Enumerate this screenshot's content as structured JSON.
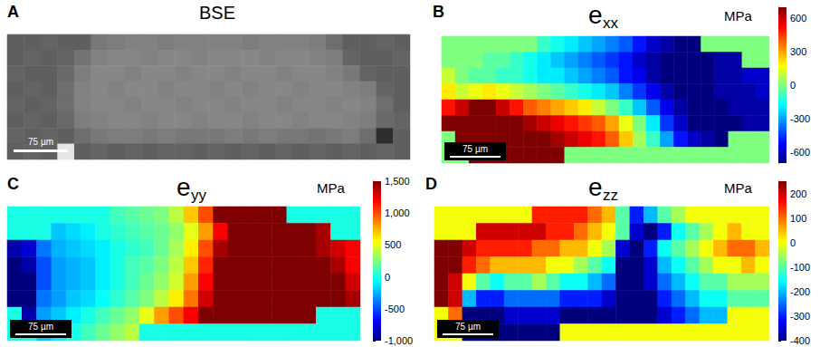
{
  "chart_data": [
    {
      "type": "image",
      "panel": "A",
      "title": "BSE",
      "scale_bar": "75 µm",
      "tick_labels": false,
      "gray_range": [
        0,
        255
      ],
      "cells": [
        [
          95,
          95,
          100,
          95,
          95,
          120,
          125,
          130,
          130,
          125,
          130,
          130,
          130,
          130,
          125,
          130,
          130,
          130,
          125,
          110,
          95,
          95,
          100,
          95
        ],
        [
          95,
          100,
          95,
          100,
          115,
          130,
          135,
          135,
          130,
          135,
          135,
          130,
          135,
          135,
          135,
          130,
          135,
          135,
          130,
          125,
          100,
          95,
          95,
          100
        ],
        [
          100,
          95,
          95,
          105,
          125,
          135,
          135,
          130,
          135,
          135,
          130,
          135,
          135,
          130,
          135,
          135,
          130,
          135,
          135,
          130,
          120,
          100,
          95,
          95
        ],
        [
          95,
          100,
          95,
          110,
          130,
          135,
          130,
          135,
          135,
          130,
          135,
          135,
          130,
          135,
          130,
          135,
          135,
          130,
          135,
          135,
          130,
          125,
          100,
          95
        ],
        [
          100,
          95,
          100,
          110,
          130,
          135,
          135,
          130,
          135,
          135,
          130,
          135,
          135,
          130,
          135,
          135,
          130,
          135,
          135,
          130,
          135,
          130,
          110,
          95
        ],
        [
          95,
          100,
          95,
          105,
          125,
          130,
          135,
          135,
          130,
          135,
          135,
          130,
          135,
          135,
          130,
          135,
          135,
          130,
          135,
          135,
          130,
          125,
          105,
          100
        ],
        [
          100,
          95,
          100,
          95,
          110,
          120,
          125,
          125,
          120,
          125,
          120,
          120,
          120,
          125,
          120,
          125,
          120,
          120,
          115,
          120,
          125,
          110,
          45,
          95
        ],
        [
          95,
          100,
          95,
          230,
          95,
          100,
          95,
          100,
          95,
          100,
          100,
          95,
          100,
          95,
          100,
          95,
          100,
          95,
          100,
          95,
          100,
          95,
          100,
          95
        ]
      ]
    },
    {
      "type": "heatmap",
      "panel": "B",
      "title": {
        "text": "e",
        "subscript": "xx"
      },
      "unit": "MPa",
      "scale_bar": "75 µm",
      "tick_labels": false,
      "colorbar_range": [
        -700,
        700
      ],
      "colorbar_ticks": [
        -600,
        -300,
        0,
        300,
        600
      ],
      "cells": [
        [
          0,
          0,
          0,
          0,
          0,
          0,
          0,
          -100,
          -150,
          -200,
          -250,
          -300,
          -350,
          -400,
          -500,
          -600,
          -650,
          -700,
          -700,
          0,
          0,
          0,
          0,
          0
        ],
        [
          0,
          0,
          0,
          -50,
          -50,
          -100,
          -150,
          -200,
          -250,
          -300,
          -350,
          -400,
          -450,
          -500,
          -600,
          -650,
          -700,
          -700,
          -700,
          -700,
          -650,
          -650,
          0,
          0
        ],
        [
          100,
          0,
          -50,
          -50,
          -100,
          -100,
          -150,
          -200,
          -200,
          -250,
          -300,
          -350,
          -400,
          -500,
          -550,
          -650,
          -700,
          -700,
          -700,
          -700,
          -650,
          -650,
          -600,
          -600
        ],
        [
          200,
          100,
          150,
          200,
          150,
          100,
          50,
          0,
          -50,
          -100,
          -150,
          -200,
          -250,
          -350,
          -450,
          -550,
          -650,
          -700,
          -700,
          -700,
          -650,
          -650,
          -650,
          -600
        ],
        [
          500,
          600,
          700,
          700,
          600,
          500,
          400,
          350,
          300,
          250,
          200,
          100,
          0,
          -100,
          -250,
          -400,
          -550,
          -650,
          -700,
          -700,
          -700,
          -650,
          -650,
          -650
        ],
        [
          700,
          700,
          700,
          700,
          700,
          700,
          650,
          600,
          550,
          500,
          450,
          400,
          300,
          150,
          0,
          -200,
          -450,
          -600,
          -700,
          -700,
          -700,
          -700,
          -650,
          -650
        ],
        [
          0,
          700,
          700,
          700,
          700,
          700,
          700,
          700,
          650,
          600,
          550,
          500,
          400,
          250,
          50,
          -100,
          -300,
          -500,
          -600,
          -650,
          -700,
          0,
          0,
          0
        ],
        [
          0,
          0,
          700,
          700,
          700,
          700,
          700,
          700,
          700,
          0,
          0,
          0,
          0,
          0,
          0,
          0,
          0,
          0,
          0,
          0,
          0,
          0,
          0,
          0
        ]
      ]
    },
    {
      "type": "heatmap",
      "panel": "C",
      "title": {
        "text": "e",
        "subscript": "yy"
      },
      "unit": "MPa",
      "scale_bar": "75 µm",
      "tick_labels": false,
      "colorbar_range": [
        -1000,
        1500
      ],
      "colorbar_ticks": [
        -1000,
        -500,
        0,
        500,
        1000,
        1500
      ],
      "cells": [
        [
          0,
          0,
          0,
          0,
          0,
          0,
          0,
          100,
          150,
          200,
          250,
          400,
          700,
          1000,
          1500,
          1500,
          1500,
          1500,
          1500,
          0,
          0,
          0,
          0,
          0
        ],
        [
          0,
          0,
          0,
          -200,
          -150,
          -100,
          0,
          50,
          100,
          150,
          200,
          300,
          500,
          800,
          1200,
          1500,
          1500,
          1500,
          1500,
          1500,
          1500,
          1400,
          0,
          0
        ],
        [
          -900,
          -800,
          -400,
          -250,
          -200,
          -150,
          -100,
          0,
          50,
          100,
          200,
          350,
          600,
          1000,
          1400,
          1500,
          1500,
          1500,
          1500,
          1500,
          1500,
          1400,
          1300,
          1200
        ],
        [
          -1000,
          -900,
          -500,
          -300,
          -250,
          -200,
          -100,
          0,
          100,
          150,
          250,
          400,
          700,
          1100,
          1500,
          1500,
          1500,
          1500,
          1500,
          1500,
          1500,
          1500,
          1400,
          1200
        ],
        [
          -1000,
          -1000,
          -500,
          -300,
          -250,
          -200,
          -100,
          0,
          100,
          200,
          300,
          450,
          800,
          1200,
          1500,
          1500,
          1500,
          1500,
          1500,
          1500,
          1500,
          1500,
          1500,
          1300
        ],
        [
          -1000,
          -1000,
          -400,
          -300,
          -200,
          -150,
          -50,
          50,
          150,
          250,
          400,
          600,
          900,
          1300,
          1500,
          1500,
          1500,
          1500,
          1500,
          1500,
          1500,
          1500,
          1500,
          1400
        ],
        [
          0,
          -900,
          -300,
          -200,
          -100,
          0,
          100,
          200,
          300,
          500,
          800,
          1000,
          1200,
          1500,
          1500,
          1500,
          1500,
          1500,
          1500,
          1500,
          1500,
          0,
          0,
          0
        ],
        [
          0,
          0,
          -200,
          -100,
          0,
          100,
          200,
          300,
          400,
          0,
          0,
          0,
          0,
          0,
          0,
          0,
          0,
          0,
          0,
          0,
          0,
          0,
          0,
          0
        ]
      ]
    },
    {
      "type": "heatmap",
      "panel": "D",
      "title": {
        "text": "e",
        "subscript": "zz"
      },
      "unit": "MPa",
      "scale_bar": "75 µm",
      "tick_labels": false,
      "colorbar_range": [
        -400,
        250
      ],
      "colorbar_ticks": [
        -400,
        -300,
        -200,
        -100,
        0,
        100,
        200
      ],
      "cells": [
        [
          0,
          0,
          0,
          0,
          0,
          0,
          0,
          150,
          150,
          150,
          150,
          100,
          50,
          -100,
          -300,
          -200,
          -100,
          -50,
          0,
          0,
          0,
          0,
          0,
          0
        ],
        [
          0,
          0,
          0,
          200,
          200,
          200,
          200,
          200,
          150,
          150,
          100,
          50,
          0,
          -100,
          -350,
          -400,
          -300,
          -150,
          -100,
          -50,
          0,
          50,
          0,
          0
        ],
        [
          250,
          250,
          200,
          150,
          150,
          150,
          150,
          100,
          100,
          50,
          50,
          0,
          -50,
          -350,
          -400,
          -300,
          -150,
          -100,
          -50,
          0,
          50,
          100,
          100,
          50
        ],
        [
          250,
          250,
          150,
          100,
          50,
          50,
          50,
          50,
          0,
          0,
          -50,
          -100,
          -150,
          -400,
          -400,
          -350,
          -200,
          -150,
          -100,
          -50,
          0,
          0,
          50,
          0
        ],
        [
          250,
          200,
          0,
          -100,
          -150,
          -100,
          -100,
          -50,
          -100,
          -150,
          -150,
          -200,
          -250,
          -400,
          -400,
          -350,
          -250,
          -200,
          -150,
          -100,
          -100,
          -50,
          -50,
          -50
        ],
        [
          250,
          200,
          -200,
          -300,
          -300,
          -250,
          -250,
          -250,
          -250,
          -300,
          -300,
          -300,
          -350,
          -400,
          -400,
          -400,
          -300,
          -250,
          -200,
          -150,
          -150,
          -100,
          -100,
          -100
        ],
        [
          0,
          100,
          -400,
          -400,
          -400,
          -350,
          -350,
          -350,
          -350,
          -400,
          -400,
          -400,
          -400,
          -400,
          -400,
          -400,
          -350,
          -300,
          -250,
          -200,
          -200,
          0,
          0,
          0
        ],
        [
          0,
          0,
          -400,
          -400,
          -400,
          -400,
          -400,
          -400,
          -400,
          0,
          0,
          0,
          0,
          0,
          0,
          0,
          0,
          0,
          0,
          0,
          0,
          0,
          0,
          0
        ]
      ]
    }
  ]
}
